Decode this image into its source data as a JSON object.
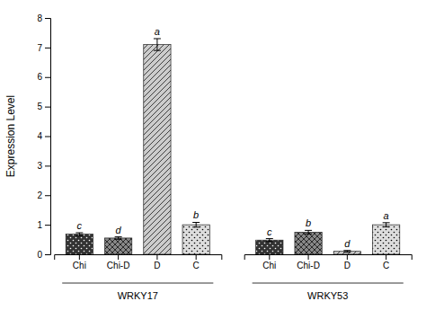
{
  "chart_data": {
    "type": "bar",
    "categories": [
      "Chi",
      "Chi-D",
      "D",
      "C"
    ],
    "series": [
      {
        "name": "WRKY17",
        "values": [
          0.68,
          0.55,
          7.1,
          1.0
        ],
        "errors": [
          0.05,
          0.04,
          0.2,
          0.08
        ],
        "annotations": [
          "c",
          "d",
          "a",
          "b"
        ],
        "colors": [
          "#333333",
          "#888888",
          "#cccccc",
          "#dddddd"
        ]
      },
      {
        "name": "WRKY53",
        "values": [
          0.48,
          0.75,
          0.1,
          1.0
        ],
        "errors": [
          0.05,
          0.06,
          0.03,
          0.07
        ],
        "annotations": [
          "c",
          "b",
          "d",
          "a"
        ],
        "colors": [
          "#333333",
          "#888888",
          "#cccccc",
          "#dddddd"
        ]
      }
    ],
    "ylabel": "Expression Level",
    "ylim": [
      0,
      8
    ],
    "yticks": [
      0,
      1,
      2,
      3,
      4,
      5,
      6,
      7,
      8
    ],
    "grid": false
  }
}
